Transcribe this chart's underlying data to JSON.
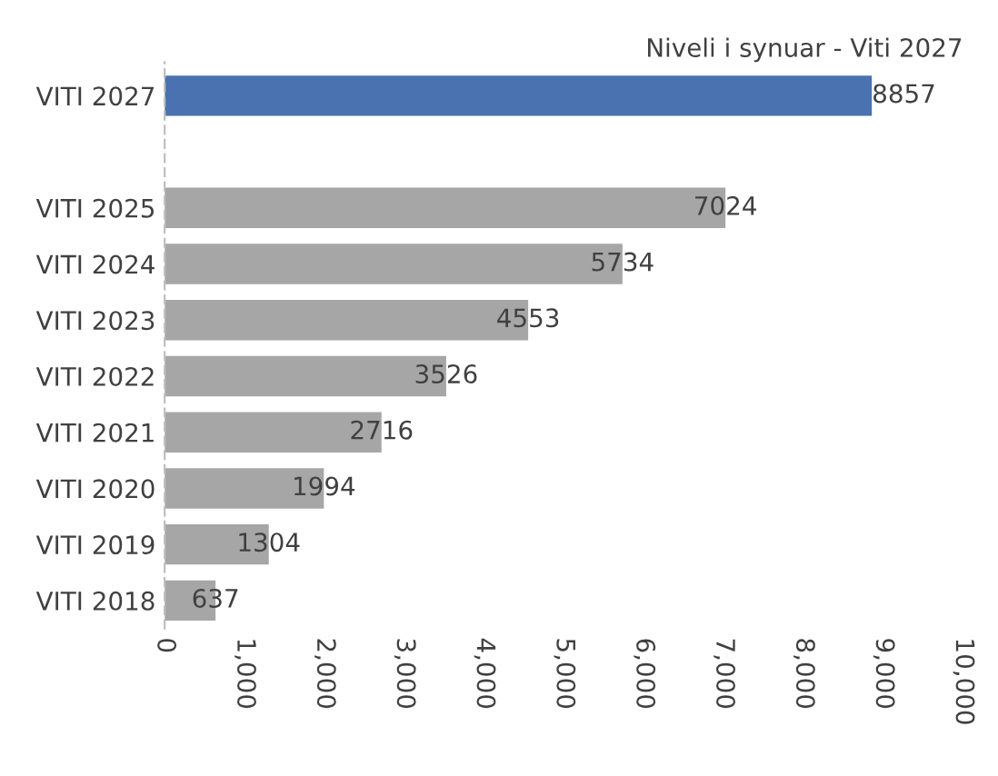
{
  "chart_data": {
    "type": "bar",
    "orientation": "horizontal",
    "title": "Niveli i synuar - Viti 2027",
    "categories": [
      "VITI 2027",
      null,
      "VITI 2025",
      "VITI 2024",
      "VITI 2023",
      "VITI 2022",
      "VITI 2021",
      "VITI 2020",
      "VITI 2019",
      "VITI 2018"
    ],
    "values": [
      8857,
      null,
      7024,
      5734,
      4553,
      3526,
      2716,
      1994,
      1304,
      637
    ],
    "colors": [
      "#4a72b0",
      "#a6a6a6",
      "#a6a6a6",
      "#a6a6a6",
      "#a6a6a6",
      "#a6a6a6",
      "#a6a6a6",
      "#a6a6a6",
      "#a6a6a6",
      "#a6a6a6"
    ],
    "xlim": [
      0,
      10000
    ],
    "xticks": [
      {
        "value": 0,
        "label": "0"
      },
      {
        "value": 1000,
        "label": "1,000"
      },
      {
        "value": 2000,
        "label": "2,000"
      },
      {
        "value": 3000,
        "label": "3,000"
      },
      {
        "value": 4000,
        "label": "4,000"
      },
      {
        "value": 5000,
        "label": "5,000"
      },
      {
        "value": 6000,
        "label": "6,000"
      },
      {
        "value": 7000,
        "label": "7,000"
      },
      {
        "value": 8000,
        "label": "8,000"
      },
      {
        "value": 9000,
        "label": "9,000"
      },
      {
        "value": 10000,
        "label": "10,000"
      }
    ],
    "data_labels": true,
    "grid": false,
    "legend": false
  }
}
